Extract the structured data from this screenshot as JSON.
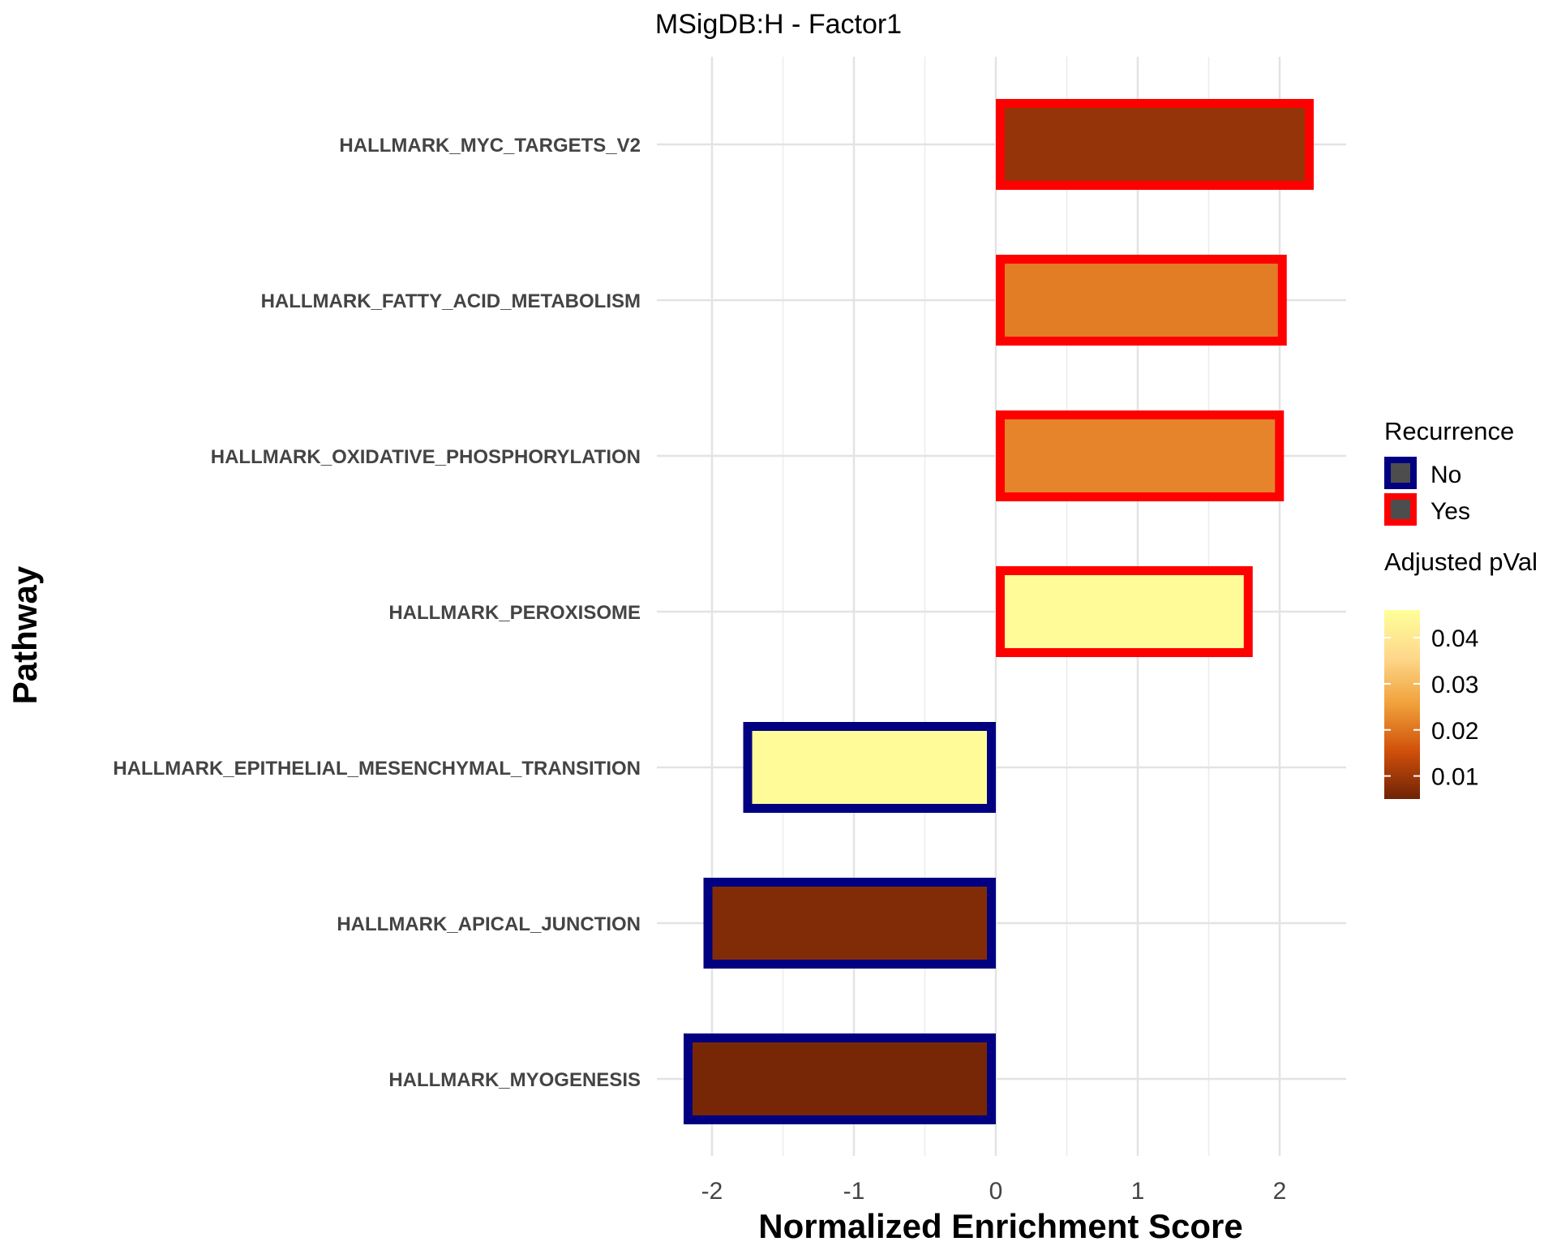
{
  "chart_data": {
    "type": "bar",
    "orientation": "horizontal",
    "title": "MSigDB:H - Factor1",
    "xlabel": "Normalized Enrichment Score",
    "ylabel": "Pathway",
    "xlim": [
      -2.5,
      2.5
    ],
    "xticks": [
      -2,
      -1,
      0,
      1,
      2
    ],
    "grid": true,
    "categories": [
      "HALLMARK_MYC_TARGETS_V2",
      "HALLMARK_FATTY_ACID_METABOLISM",
      "HALLMARK_OXIDATIVE_PHOSPHORYLATION",
      "HALLMARK_PEROXISOME",
      "HALLMARK_EPITHELIAL_MESENCHYMAL_TRANSITION",
      "HALLMARK_APICAL_JUNCTION",
      "HALLMARK_MYOGENESIS"
    ],
    "values": [
      2.24,
      2.05,
      2.03,
      1.81,
      -1.78,
      -2.06,
      -2.2
    ],
    "adjusted_pval": [
      0.009,
      0.021,
      0.022,
      0.045,
      0.045,
      0.007,
      0.006
    ],
    "recurrence": [
      "Yes",
      "Yes",
      "Yes",
      "Yes",
      "No",
      "No",
      "No"
    ],
    "legend": {
      "placement": "right",
      "recurrence": {
        "title": "Recurrence",
        "entries": [
          {
            "label": "No",
            "color": "#000080"
          },
          {
            "label": "Yes",
            "color": "#ff0000"
          }
        ]
      },
      "pval": {
        "title": "Adjusted pVal",
        "ticks": [
          {
            "value": 0.04,
            "label": "0.04"
          },
          {
            "value": 0.03,
            "label": "0.03"
          },
          {
            "value": 0.02,
            "label": "0.02"
          },
          {
            "value": 0.01,
            "label": "0.01"
          }
        ],
        "range": [
          0.005,
          0.046
        ],
        "colors": [
          "#6f2306",
          "#cf4f0a",
          "#f0a03a",
          "#fed88c",
          "#ffff99"
        ]
      }
    }
  }
}
